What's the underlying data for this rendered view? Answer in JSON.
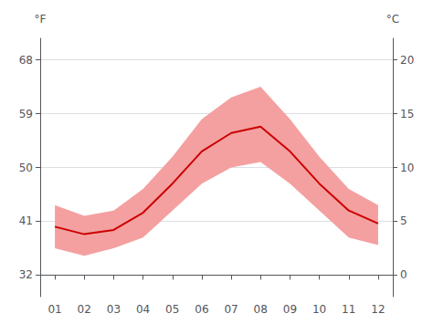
{
  "chart_data": {
    "type": "line",
    "categories": [
      "01",
      "02",
      "03",
      "04",
      "05",
      "06",
      "07",
      "08",
      "09",
      "10",
      "11",
      "12"
    ],
    "series": [
      {
        "type": "band",
        "color": "#f4a0a0",
        "low": [
          2.5,
          1.8,
          2.5,
          3.5,
          6.0,
          8.5,
          10.0,
          10.5,
          8.5,
          6.0,
          3.5,
          2.8
        ],
        "high": [
          6.5,
          5.5,
          6.0,
          8.0,
          11.0,
          14.5,
          16.5,
          17.5,
          14.5,
          11.0,
          8.0,
          6.5
        ]
      },
      {
        "type": "line",
        "color": "#cc0000",
        "values": [
          4.5,
          3.8,
          4.2,
          5.8,
          8.5,
          11.5,
          13.2,
          13.8,
          11.5,
          8.5,
          6.0,
          4.8
        ]
      }
    ],
    "ylabel": "°C",
    "y2label": "°F",
    "ylim": [
      -2,
      22
    ],
    "yticks": [
      0,
      5,
      10,
      15,
      20
    ],
    "y2lim": [
      28.4,
      71.6
    ],
    "y2ticks": [
      32,
      41,
      50,
      59,
      68
    ],
    "grid": true
  }
}
